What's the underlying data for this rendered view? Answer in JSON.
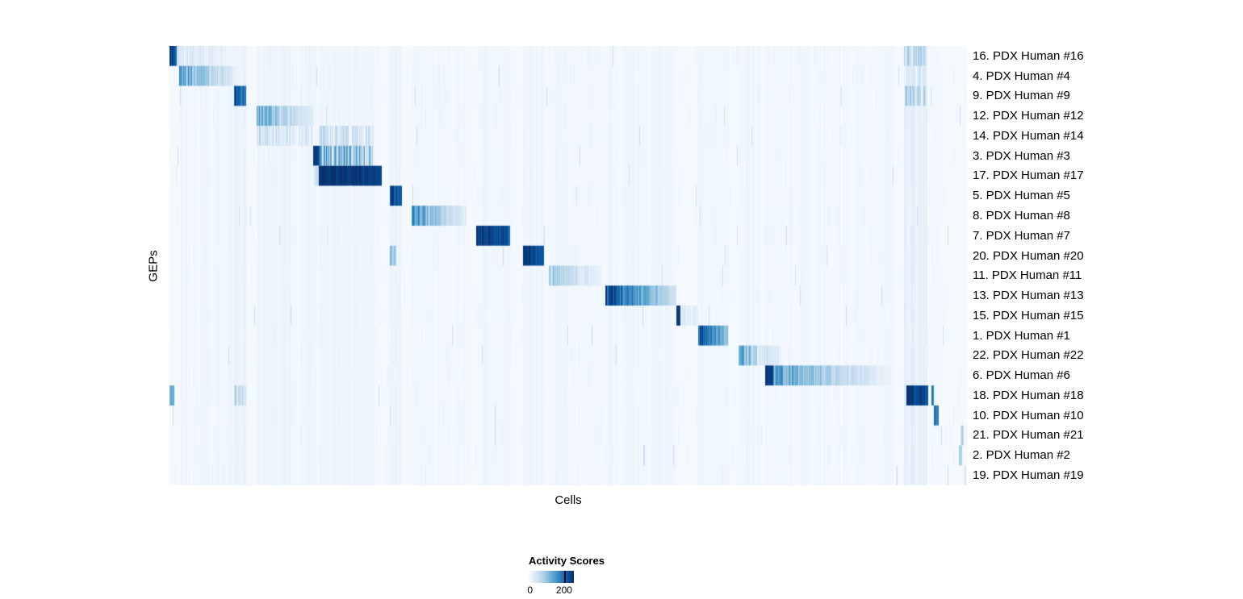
{
  "page": {
    "background": "#ffffff"
  },
  "chart_data": {
    "type": "heatmap",
    "title": "",
    "xlabel": "Cells",
    "ylabel": "GEPs",
    "legend": {
      "title": "Activity Scores",
      "ticks": [
        0,
        200
      ]
    },
    "colormap": {
      "name": "Blues",
      "stops": [
        "#f7fbff",
        "#deebf7",
        "#c6dbef",
        "#9ecae1",
        "#6baed6",
        "#4292c6",
        "#2171b5",
        "#08519c",
        "#08306b"
      ]
    },
    "scale_max": 255,
    "background_score": 4,
    "noise": {
      "seed": 7,
      "base": 5,
      "spread": 14,
      "spike": 45
    },
    "segment_format": [
      "x0_fraction",
      "x1_fraction",
      "score_start",
      "score_end",
      "jitter"
    ],
    "rows": [
      {
        "label": "16. PDX Human #16",
        "segments": [
          [
            0.0,
            0.009,
            240,
            200,
            0.1
          ],
          [
            0.009,
            0.085,
            40,
            10,
            0.7
          ],
          [
            0.921,
            0.949,
            60,
            55,
            0.85
          ]
        ]
      },
      {
        "label": "4. PDX Human #4",
        "segments": [
          [
            0.012,
            0.083,
            135,
            30,
            0.4
          ],
          [
            0.921,
            0.949,
            35,
            30,
            0.85
          ]
        ]
      },
      {
        "label": "9. PDX Human #9",
        "segments": [
          [
            0.081,
            0.096,
            230,
            180,
            0.15
          ],
          [
            0.921,
            0.949,
            62,
            55,
            0.85
          ]
        ]
      },
      {
        "label": "12. PDX Human #12",
        "segments": [
          [
            0.109,
            0.181,
            125,
            25,
            0.4
          ]
        ]
      },
      {
        "label": "14. PDX Human #14",
        "segments": [
          [
            0.109,
            0.182,
            40,
            30,
            1.0
          ],
          [
            0.187,
            0.256,
            45,
            35,
            1.0
          ]
        ]
      },
      {
        "label": "3. PDX Human #3",
        "segments": [
          [
            0.18,
            0.187,
            252,
            245,
            0.05
          ],
          [
            0.187,
            0.256,
            115,
            90,
            0.95
          ]
        ]
      },
      {
        "label": "17. PDX Human #17",
        "segments": [
          [
            0.181,
            0.187,
            65,
            60,
            0.5
          ],
          [
            0.187,
            0.266,
            254,
            238,
            0.05
          ]
        ]
      },
      {
        "label": "5. PDX Human #5",
        "segments": [
          [
            0.276,
            0.292,
            240,
            205,
            0.12
          ]
        ]
      },
      {
        "label": "8. PDX Human #8",
        "segments": [
          [
            0.304,
            0.372,
            150,
            25,
            0.35
          ]
        ]
      },
      {
        "label": "7. PDX Human #7",
        "segments": [
          [
            0.385,
            0.427,
            242,
            215,
            0.1
          ]
        ]
      },
      {
        "label": "20. PDX Human #20",
        "segments": [
          [
            0.276,
            0.284,
            95,
            75,
            0.4
          ],
          [
            0.443,
            0.47,
            242,
            218,
            0.1
          ]
        ]
      },
      {
        "label": "11. PDX Human #11",
        "segments": [
          [
            0.476,
            0.543,
            90,
            18,
            0.45
          ]
        ]
      },
      {
        "label": "13. PDX Human #13",
        "segments": [
          [
            0.547,
            0.636,
            230,
            45,
            0.25
          ]
        ]
      },
      {
        "label": "15. PDX Human #15",
        "segments": [
          [
            0.636,
            0.641,
            245,
            235,
            0.05
          ],
          [
            0.641,
            0.664,
            32,
            22,
            0.7
          ]
        ]
      },
      {
        "label": "1. PDX Human #1",
        "segments": [
          [
            0.663,
            0.7,
            215,
            110,
            0.2
          ]
        ]
      },
      {
        "label": "22. PDX Human #22",
        "segments": [
          [
            0.714,
            0.737,
            140,
            70,
            0.4
          ],
          [
            0.737,
            0.768,
            42,
            22,
            0.6
          ]
        ]
      },
      {
        "label": "6. PDX Human #6",
        "segments": [
          [
            0.747,
            0.757,
            252,
            244,
            0.05
          ],
          [
            0.757,
            0.909,
            140,
            12,
            0.35
          ]
        ]
      },
      {
        "label": "18. PDX Human #18",
        "segments": [
          [
            0.0,
            0.006,
            130,
            110,
            0.3
          ],
          [
            0.081,
            0.096,
            55,
            45,
            0.9
          ],
          [
            0.924,
            0.951,
            252,
            224,
            0.08
          ],
          [
            0.955,
            0.959,
            215,
            195,
            0.12
          ]
        ]
      },
      {
        "label": "10. PDX Human #10",
        "segments": [
          [
            0.959,
            0.965,
            210,
            155,
            0.2
          ]
        ]
      },
      {
        "label": "21. PDX Human #21",
        "segments": [
          [
            0.992,
            0.996,
            75,
            60,
            0.3
          ]
        ]
      },
      {
        "label": "2. PDX Human #2",
        "segments": [
          [
            0.99,
            0.994,
            85,
            65,
            0.3
          ]
        ]
      },
      {
        "label": "19. PDX Human #19",
        "segments": [
          [
            0.996,
            0.999,
            35,
            30,
            0.5
          ]
        ]
      }
    ],
    "column_bands": [
      [
        0.012,
        0.083,
        8
      ],
      [
        0.081,
        0.097,
        12
      ],
      [
        0.109,
        0.185,
        10
      ],
      [
        0.187,
        0.26,
        9
      ],
      [
        0.276,
        0.292,
        10
      ],
      [
        0.304,
        0.372,
        8
      ],
      [
        0.385,
        0.428,
        8
      ],
      [
        0.443,
        0.471,
        10
      ],
      [
        0.476,
        0.545,
        7
      ],
      [
        0.547,
        0.637,
        8
      ],
      [
        0.663,
        0.701,
        8
      ],
      [
        0.714,
        0.741,
        10
      ],
      [
        0.747,
        0.91,
        7
      ],
      [
        0.921,
        0.95,
        20
      ],
      [
        0.955,
        0.965,
        8
      ]
    ]
  }
}
